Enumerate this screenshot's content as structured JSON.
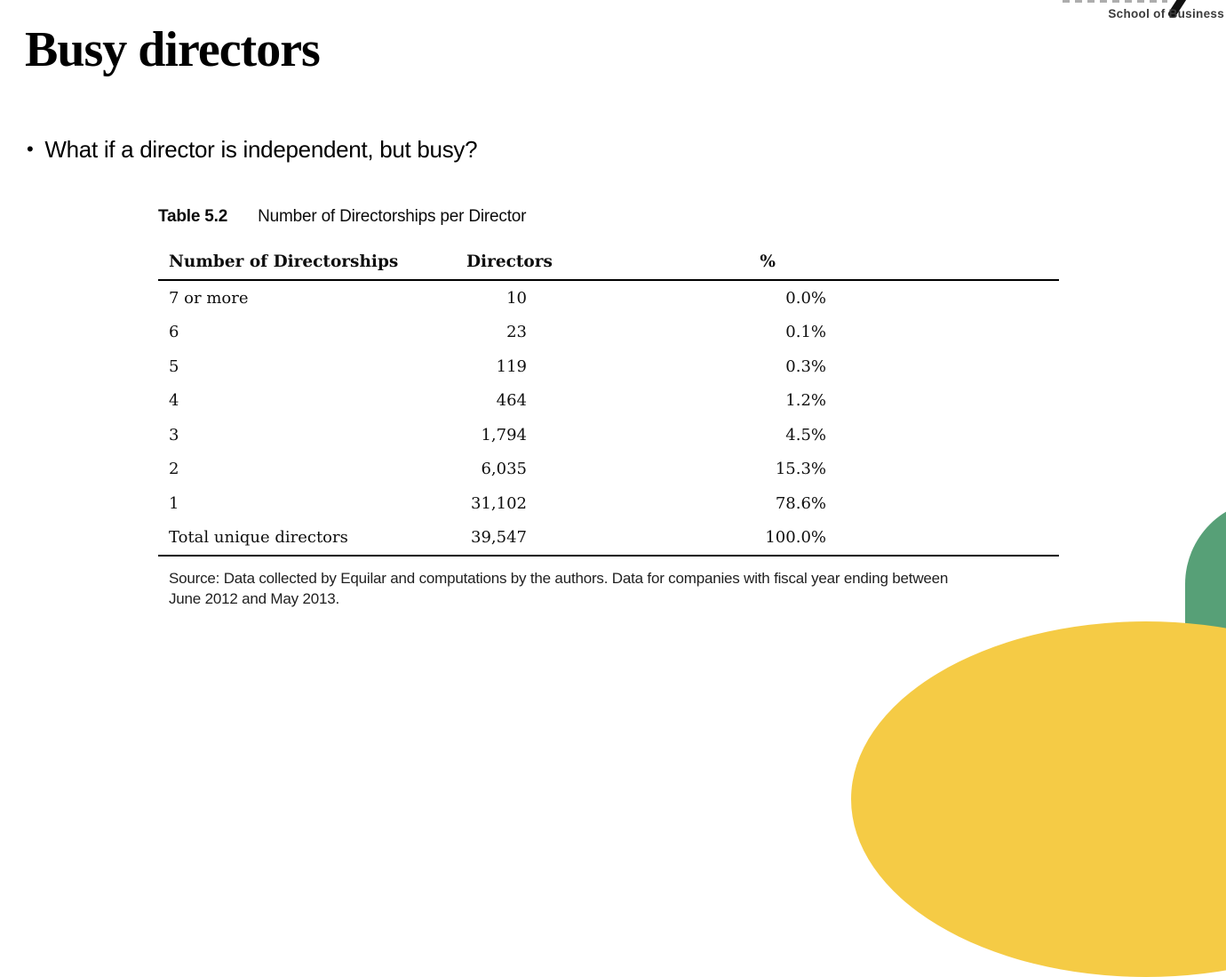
{
  "slide": {
    "title": "Busy directors",
    "bullet": "What if a director is independent, but busy?",
    "bullet_glyph": "•"
  },
  "logo": {
    "school_label": "School of Business"
  },
  "table": {
    "caption_label": "Table 5.2",
    "caption_title": "Number of Directorships per Director",
    "columns": {
      "directorships": "Number of Directorships",
      "directors": "Directors",
      "pct": "%"
    },
    "rows": [
      {
        "directorships": "7 or more",
        "directors": "10",
        "pct": "0.0%"
      },
      {
        "directorships": "6",
        "directors": "23",
        "pct": "0.1%"
      },
      {
        "directorships": "5",
        "directors": "119",
        "pct": "0.3%"
      },
      {
        "directorships": "4",
        "directors": "464",
        "pct": "1.2%"
      },
      {
        "directorships": "3",
        "directors": "1,794",
        "pct": "4.5%"
      },
      {
        "directorships": "2",
        "directors": "6,035",
        "pct": "15.3%"
      },
      {
        "directorships": "1",
        "directors": "31,102",
        "pct": "78.6%"
      },
      {
        "directorships": "Total unique directors",
        "directors": "39,547",
        "pct": "100.0%"
      }
    ],
    "source_lines": [
      "Source: Data collected by Equilar and computations by the authors. Data for companies with fiscal year ending between",
      "June 2012 and May 2013."
    ]
  },
  "colors": {
    "accent_green": "#57A077",
    "accent_yellow": "#F5CB45"
  }
}
